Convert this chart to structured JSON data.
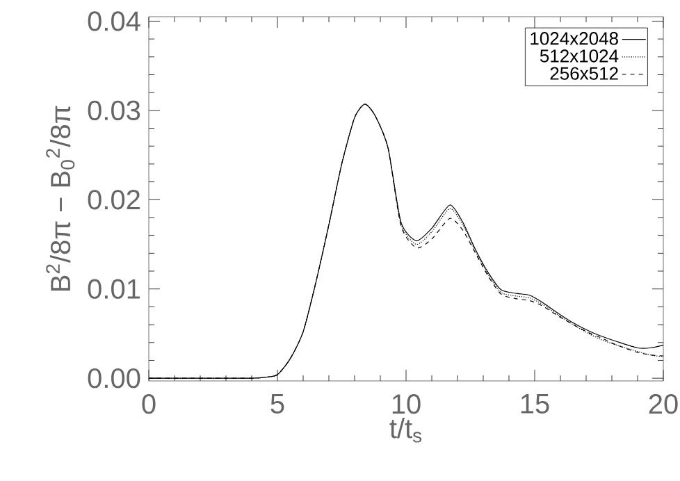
{
  "chart_data": {
    "type": "line",
    "xlabel": "t/t$_{s}$",
    "ylabel": "B$^{2}$/8π − B$_{0}$$^{2}$/8π",
    "xlim": [
      0,
      20
    ],
    "ylim": [
      -0.0003,
      0.0405
    ],
    "xticks": [
      0,
      5,
      10,
      15,
      20
    ],
    "yticks": [
      {
        "value": 0,
        "label": "0.00"
      },
      {
        "value": 0.01,
        "label": "0.01"
      },
      {
        "value": 0.02,
        "label": "0.02"
      },
      {
        "value": 0.03,
        "label": "0.03"
      },
      {
        "value": 0.04,
        "label": "0.04"
      }
    ],
    "grid": false,
    "legend": "top right",
    "marker": "none",
    "series": [
      {
        "name": "1024x2048",
        "color": "#000000",
        "line_style": "solid",
        "x": [
          0,
          1,
          2,
          3,
          4,
          4.5,
          5,
          5.5,
          6,
          6.5,
          7,
          7.5,
          8,
          8.4,
          8.8,
          9.3,
          9.8,
          10.4,
          11,
          11.7,
          12.2,
          12.7,
          13.2,
          13.7,
          14.3,
          14.8,
          15.3,
          15.9,
          16.5,
          17.1,
          17.6,
          18.2,
          19,
          19.5,
          20
        ],
        "values": [
          0,
          0,
          0,
          0,
          0,
          0.0001,
          0.0004,
          0.0022,
          0.0052,
          0.0108,
          0.0172,
          0.024,
          0.0292,
          0.0307,
          0.0294,
          0.0258,
          0.0175,
          0.0154,
          0.0168,
          0.0194,
          0.0175,
          0.0144,
          0.0118,
          0.0099,
          0.0095,
          0.0093,
          0.0085,
          0.0073,
          0.0062,
          0.0053,
          0.0047,
          0.0041,
          0.0034,
          0.0034,
          0.0037
        ]
      },
      {
        "name": "512x1024",
        "color": "#000000",
        "line_style": "dotted",
        "x": [
          0,
          1,
          2,
          3,
          4,
          4.5,
          5,
          5.5,
          6,
          6.5,
          7,
          7.5,
          8,
          8.4,
          8.8,
          9.3,
          9.8,
          10.4,
          11,
          11.7,
          12.2,
          12.7,
          13.2,
          13.7,
          14.3,
          14.8,
          15.3,
          15.9,
          16.5,
          17.1,
          17.6,
          18.2,
          19,
          19.5,
          20
        ],
        "values": [
          0,
          0,
          0,
          0,
          0,
          0.0001,
          0.0004,
          0.0022,
          0.0052,
          0.0108,
          0.0172,
          0.024,
          0.0292,
          0.0307,
          0.0294,
          0.0258,
          0.0173,
          0.015,
          0.0164,
          0.019,
          0.0172,
          0.0142,
          0.0116,
          0.0096,
          0.0092,
          0.009,
          0.0083,
          0.0071,
          0.006,
          0.005,
          0.0043,
          0.0037,
          0.003,
          0.0026,
          0.0024
        ]
      },
      {
        "name": "256x512",
        "color": "#000000",
        "line_style": "dashed",
        "x": [
          0,
          1,
          2,
          3,
          4,
          4.5,
          5,
          5.5,
          6,
          6.5,
          7,
          7.5,
          8,
          8.4,
          8.8,
          9.3,
          9.8,
          10.4,
          11,
          11.7,
          12.2,
          12.7,
          13.2,
          13.7,
          14.3,
          14.8,
          15.3,
          15.9,
          16.5,
          17.1,
          17.6,
          18.2,
          19,
          19.5,
          20
        ],
        "values": [
          0,
          0,
          0,
          0,
          0,
          0.0001,
          0.0004,
          0.0022,
          0.0052,
          0.0108,
          0.0172,
          0.024,
          0.0292,
          0.0307,
          0.0294,
          0.0258,
          0.0171,
          0.0146,
          0.0156,
          0.0179,
          0.0166,
          0.014,
          0.0114,
          0.0094,
          0.0089,
          0.0087,
          0.0081,
          0.007,
          0.006,
          0.0051,
          0.0045,
          0.0037,
          0.0029,
          0.0026,
          0.0025
        ]
      }
    ]
  }
}
